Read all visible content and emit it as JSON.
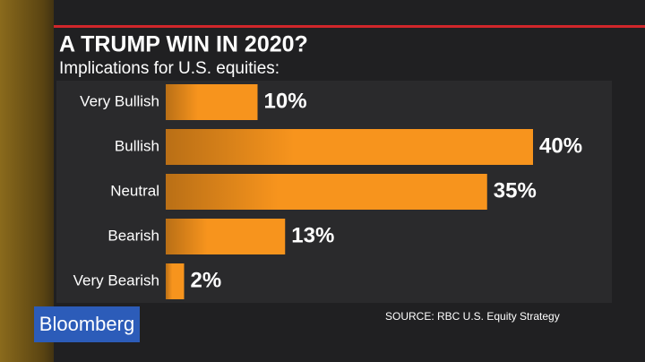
{
  "chart_data": {
    "type": "bar",
    "orientation": "horizontal",
    "title": "A TRUMP WIN IN 2020?",
    "subtitle": "Implications for U.S. equities:",
    "categories": [
      "Very Bullish",
      "Bullish",
      "Neutral",
      "Bearish",
      "Very Bearish"
    ],
    "values": [
      10,
      40,
      35,
      13,
      2
    ],
    "value_labels": [
      "10%",
      "40%",
      "35%",
      "13%",
      "2%"
    ],
    "color": "#f7941d",
    "source": "SOURCE: RBC U.S. Equity Strategy"
  },
  "brand": "Bloomberg"
}
